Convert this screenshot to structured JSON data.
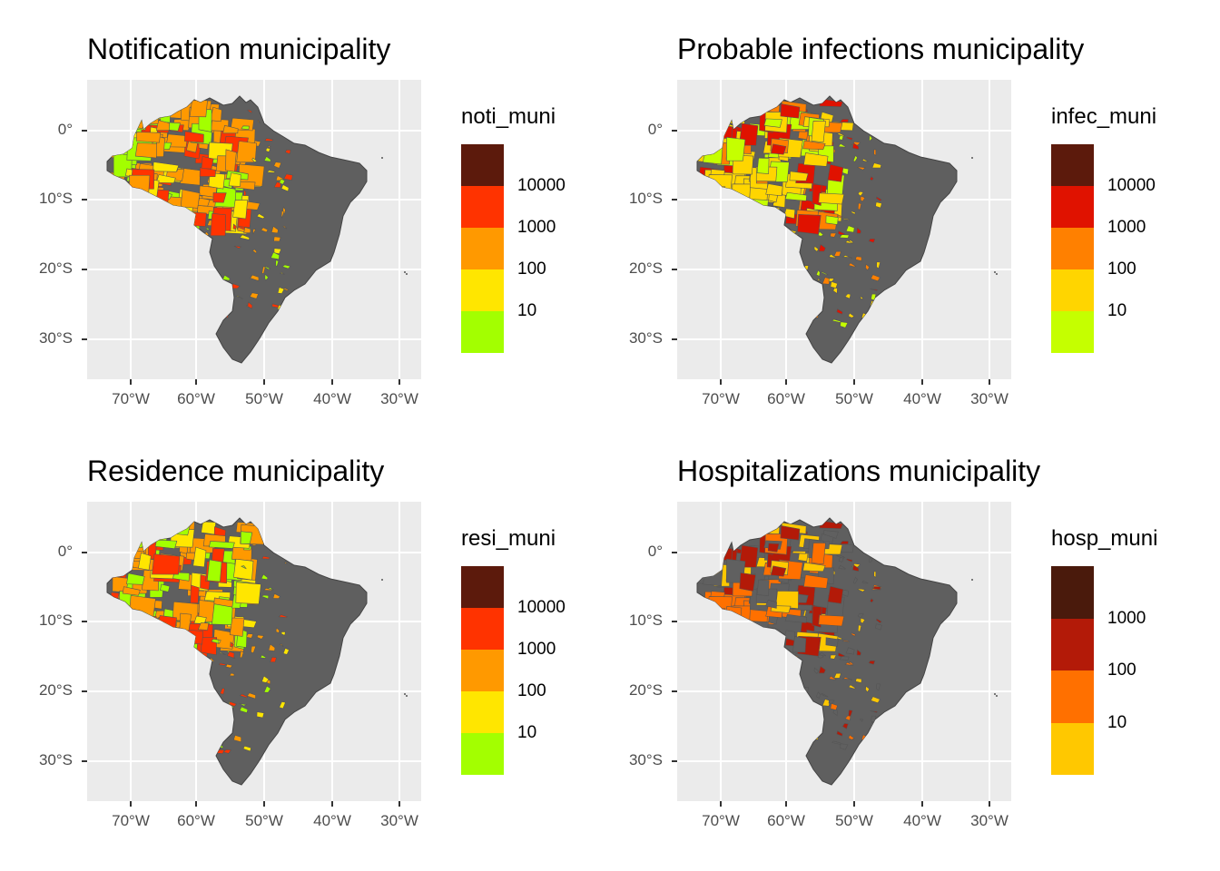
{
  "axes": {
    "y_ticks": [
      "0°",
      "10°S",
      "20°S",
      "30°S"
    ],
    "x_ticks": [
      "70°W",
      "60°W",
      "50°W",
      "40°W",
      "30°W"
    ]
  },
  "panels": [
    {
      "title": "Notification municipality",
      "legend_title": "noti_muni",
      "legend_colors": [
        "#5c1a0c",
        "#ff3300",
        "#ff9900",
        "#ffe600",
        "#a3ff00"
      ],
      "legend_labels": [
        "10000",
        "1000",
        "100",
        "10"
      ],
      "map_palette": [
        "#ff9900",
        "#ff9900",
        "#ffe600",
        "#a3ff00",
        "#ff3300"
      ]
    },
    {
      "title": "Probable infections municipality",
      "legend_title": "infec_muni",
      "legend_colors": [
        "#5c1a0c",
        "#e01200",
        "#ff8000",
        "#ffd500",
        "#c5ff00"
      ],
      "legend_labels": [
        "10000",
        "1000",
        "100",
        "10"
      ],
      "map_palette": [
        "#ff8000",
        "#ffd500",
        "#c5ff00",
        "#ffd500",
        "#e01200"
      ]
    },
    {
      "title": "Residence municipality",
      "legend_title": "resi_muni",
      "legend_colors": [
        "#5c1a0c",
        "#ff3300",
        "#ff9900",
        "#ffe600",
        "#a3ff00"
      ],
      "legend_labels": [
        "10000",
        "1000",
        "100",
        "10"
      ],
      "map_palette": [
        "#ff9900",
        "#ffe600",
        "#ff9900",
        "#a3ff00",
        "#ff3300"
      ]
    },
    {
      "title": "Hospitalizations municipality",
      "legend_title": "hosp_muni",
      "legend_colors": [
        "#4a1a0c",
        "#b31a08",
        "#ff7000",
        "#ffc800"
      ],
      "legend_labels": [
        "1000",
        "100",
        "10"
      ],
      "map_palette": [
        "#ffc800",
        "#ff7000",
        "#606060",
        "#606060",
        "#b31a08"
      ]
    }
  ]
}
